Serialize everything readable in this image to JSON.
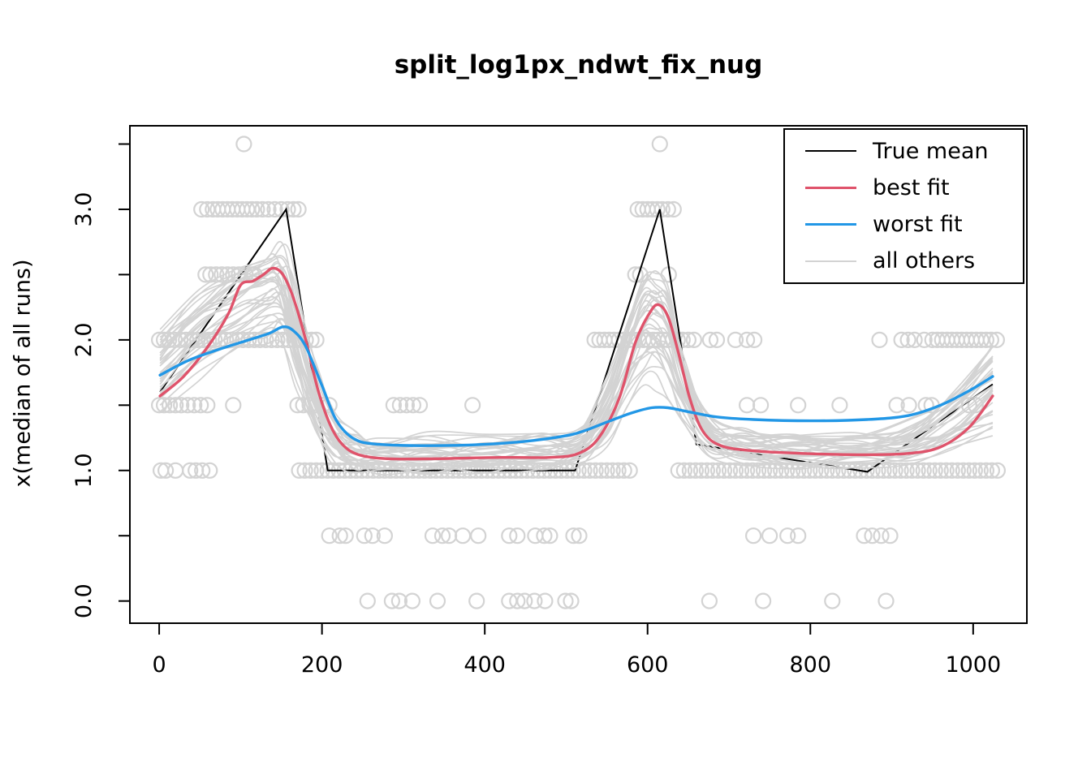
{
  "chart_data": {
    "type": "line",
    "title": "split_log1px_ndwt_fix_nug",
    "xlabel": "",
    "ylabel": "x(median of all runs)",
    "grid": false,
    "xlim": [
      -36,
      1066
    ],
    "ylim": [
      -0.17,
      3.64
    ],
    "x_ticks": [
      0,
      200,
      400,
      600,
      800,
      1000
    ],
    "y_major_ticks": [
      0,
      1,
      2,
      3
    ],
    "y_major_tick_labels": [
      "0.0",
      "1.0",
      "2.0",
      "3.0"
    ],
    "y_minor_ticks": [
      0.5,
      1.5,
      2.5,
      3.5
    ],
    "legend": {
      "position": "top-right",
      "entries": [
        {
          "label": "True mean",
          "color": "#000000",
          "swatch_height": 2
        },
        {
          "label": "best fit",
          "color": "#DF536B",
          "swatch_height": 3
        },
        {
          "label": "worst fit",
          "color": "#2297E6",
          "swatch_height": 3
        },
        {
          "label": "all others",
          "color": "#D3D3D3",
          "swatch_height": 2
        }
      ]
    },
    "series": [
      {
        "name": "True mean",
        "color": "#000000",
        "width": 2,
        "smooth": false,
        "points": [
          [
            1,
            1.6
          ],
          [
            156,
            3.0
          ],
          [
            207,
            1.0
          ],
          [
            511,
            1.0
          ],
          [
            615,
            3.0
          ],
          [
            660,
            1.2
          ],
          [
            870,
            0.99
          ],
          [
            1024,
            1.66
          ]
        ]
      },
      {
        "name": "best fit",
        "color": "#DF536B",
        "width": 3.4,
        "smooth": true,
        "points": [
          [
            1,
            1.57
          ],
          [
            30,
            1.72
          ],
          [
            60,
            1.95
          ],
          [
            85,
            2.2
          ],
          [
            100,
            2.42
          ],
          [
            115,
            2.45
          ],
          [
            128,
            2.5
          ],
          [
            140,
            2.55
          ],
          [
            152,
            2.5
          ],
          [
            165,
            2.32
          ],
          [
            180,
            2.0
          ],
          [
            195,
            1.62
          ],
          [
            210,
            1.35
          ],
          [
            225,
            1.2
          ],
          [
            245,
            1.12
          ],
          [
            280,
            1.09
          ],
          [
            340,
            1.09
          ],
          [
            420,
            1.1
          ],
          [
            480,
            1.1
          ],
          [
            515,
            1.13
          ],
          [
            540,
            1.25
          ],
          [
            565,
            1.55
          ],
          [
            585,
            1.98
          ],
          [
            602,
            2.2
          ],
          [
            613,
            2.27
          ],
          [
            625,
            2.18
          ],
          [
            638,
            1.9
          ],
          [
            652,
            1.55
          ],
          [
            668,
            1.3
          ],
          [
            690,
            1.19
          ],
          [
            730,
            1.15
          ],
          [
            790,
            1.13
          ],
          [
            860,
            1.12
          ],
          [
            920,
            1.13
          ],
          [
            960,
            1.18
          ],
          [
            995,
            1.33
          ],
          [
            1024,
            1.57
          ]
        ]
      },
      {
        "name": "worst fit",
        "color": "#2297E6",
        "width": 3.4,
        "smooth": true,
        "points": [
          [
            1,
            1.73
          ],
          [
            35,
            1.84
          ],
          [
            70,
            1.92
          ],
          [
            105,
            1.99
          ],
          [
            135,
            2.05
          ],
          [
            152,
            2.1
          ],
          [
            165,
            2.07
          ],
          [
            180,
            1.95
          ],
          [
            200,
            1.65
          ],
          [
            218,
            1.38
          ],
          [
            240,
            1.24
          ],
          [
            270,
            1.2
          ],
          [
            330,
            1.19
          ],
          [
            400,
            1.2
          ],
          [
            460,
            1.23
          ],
          [
            510,
            1.28
          ],
          [
            550,
            1.37
          ],
          [
            580,
            1.44
          ],
          [
            605,
            1.48
          ],
          [
            625,
            1.48
          ],
          [
            650,
            1.45
          ],
          [
            685,
            1.41
          ],
          [
            730,
            1.39
          ],
          [
            800,
            1.38
          ],
          [
            870,
            1.39
          ],
          [
            920,
            1.42
          ],
          [
            960,
            1.5
          ],
          [
            995,
            1.61
          ],
          [
            1024,
            1.72
          ]
        ]
      }
    ],
    "others": {
      "name": "all others",
      "color": "#D3D3D3",
      "width": 1.7,
      "x_knots": [
        1,
        50,
        95,
        130,
        152,
        172,
        192,
        212,
        235,
        270,
        330,
        400,
        470,
        515,
        550,
        575,
        595,
        610,
        625,
        645,
        675,
        720,
        780,
        850,
        920,
        975,
        1024
      ],
      "curves": [
        [
          1.95,
          2.6,
          1.2,
          2.48,
          1.24,
          1.9
        ],
        [
          1.8,
          2.42,
          1.12,
          2.25,
          1.18,
          1.7
        ],
        [
          2.0,
          2.55,
          1.18,
          2.38,
          1.22,
          1.85
        ],
        [
          1.7,
          2.28,
          1.08,
          2.12,
          1.12,
          1.55
        ],
        [
          1.58,
          2.15,
          1.02,
          1.95,
          1.06,
          1.4
        ],
        [
          1.9,
          2.5,
          1.17,
          2.32,
          1.2,
          1.8
        ],
        [
          1.74,
          2.34,
          1.1,
          2.05,
          1.14,
          1.62
        ],
        [
          2.05,
          2.66,
          1.24,
          2.45,
          1.26,
          1.95
        ],
        [
          1.64,
          2.22,
          1.05,
          1.88,
          1.09,
          1.48
        ],
        [
          1.85,
          2.46,
          1.14,
          2.28,
          1.19,
          1.76
        ],
        [
          1.5,
          2.05,
          1.0,
          1.72,
          1.04,
          1.32
        ],
        [
          1.96,
          2.56,
          1.2,
          2.4,
          1.23,
          1.88
        ],
        [
          1.68,
          2.3,
          1.09,
          2.0,
          1.12,
          1.58
        ],
        [
          1.82,
          2.44,
          1.13,
          2.22,
          1.17,
          1.72
        ],
        [
          1.56,
          2.12,
          1.03,
          1.85,
          1.07,
          1.42
        ],
        [
          2.02,
          2.62,
          1.22,
          2.42,
          1.25,
          1.92
        ],
        [
          1.75,
          2.36,
          1.11,
          2.1,
          1.15,
          1.64
        ],
        [
          1.88,
          2.5,
          1.16,
          2.3,
          1.21,
          1.82
        ],
        [
          1.62,
          2.2,
          1.04,
          1.92,
          1.08,
          1.46
        ],
        [
          1.86,
          2.46,
          1.15,
          2.26,
          1.19,
          1.78
        ],
        [
          1.45,
          2.0,
          1.0,
          1.65,
          1.02,
          1.26
        ],
        [
          2.08,
          2.67,
          1.26,
          2.5,
          1.27,
          1.96
        ],
        [
          1.7,
          2.26,
          1.08,
          2.02,
          1.12,
          1.56
        ],
        [
          1.8,
          2.4,
          1.12,
          2.18,
          1.16,
          1.7
        ],
        [
          1.6,
          2.16,
          1.03,
          1.9,
          1.08,
          1.44
        ],
        [
          1.94,
          2.54,
          1.19,
          2.36,
          1.22,
          1.86
        ],
        [
          1.72,
          2.32,
          1.1,
          2.08,
          1.13,
          1.6
        ],
        [
          1.9,
          2.52,
          1.17,
          2.34,
          1.2,
          1.84
        ],
        [
          1.66,
          2.24,
          1.06,
          1.96,
          1.1,
          1.5
        ],
        [
          1.84,
          2.44,
          1.14,
          2.24,
          1.18,
          1.74
        ],
        [
          1.55,
          2.1,
          1.01,
          1.8,
          1.05,
          1.36
        ],
        [
          1.98,
          2.58,
          1.21,
          2.44,
          1.24,
          1.9
        ]
      ]
    },
    "scatter": {
      "color": "#D3D3D3",
      "radius_px": 9,
      "rows": [
        {
          "y": 3.5,
          "x": [
            104,
            615
          ]
        },
        {
          "y": 3.0,
          "x": [
            52,
            59,
            66,
            72,
            78,
            84,
            90,
            96,
            102,
            108,
            114,
            120,
            127,
            134,
            142,
            150,
            158,
            165,
            171,
            588,
            594,
            600,
            606,
            612,
            618,
            625,
            632
          ]
        },
        {
          "y": 2.5,
          "x": [
            57,
            63,
            70,
            77,
            84,
            91,
            98,
            106,
            114,
            117,
            585,
            591,
            626
          ]
        },
        {
          "y": 2.0,
          "x": [
            0,
            6,
            12,
            19,
            26,
            33,
            40,
            47,
            54,
            61,
            68,
            75,
            82,
            89,
            96,
            103,
            110,
            117,
            124,
            131,
            138,
            145,
            152,
            159,
            166,
            173,
            180,
            187,
            193,
            535,
            541,
            547,
            553,
            559,
            565,
            571,
            577,
            583,
            589,
            595,
            601,
            607,
            613,
            619,
            625,
            631,
            637,
            643,
            650,
            657,
            677,
            685,
            708,
            722,
            731,
            885,
            912,
            920,
            928,
            940,
            950,
            956,
            962,
            968,
            974,
            980,
            986,
            992,
            998,
            1004,
            1010,
            1016,
            1022,
            1029
          ]
        },
        {
          "y": 1.5,
          "x": [
            0,
            6,
            13,
            20,
            27,
            35,
            43,
            51,
            59,
            91,
            170,
            177,
            185,
            193,
            201,
            209,
            288,
            296,
            304,
            312,
            320,
            385,
            722,
            739,
            785,
            836,
            906,
            921,
            942,
            949,
            995,
            1003
          ]
        },
        {
          "y": 1.0,
          "x": [
            2,
            8,
            20,
            38,
            45,
            53,
            62,
            172,
            179,
            186,
            193,
            200,
            207,
            214,
            221,
            228,
            235,
            242,
            249,
            256,
            263,
            270,
            277,
            284,
            291,
            298,
            305,
            312,
            319,
            326,
            333,
            340,
            347,
            354,
            361,
            368,
            375,
            382,
            389,
            396,
            403,
            410,
            417,
            424,
            431,
            438,
            445,
            452,
            459,
            466,
            473,
            480,
            487,
            494,
            501,
            508,
            515,
            522,
            529,
            536,
            543,
            550,
            557,
            564,
            571,
            578,
            638,
            645,
            652,
            659,
            666,
            673,
            680,
            687,
            694,
            701,
            708,
            715,
            722,
            729,
            736,
            743,
            750,
            757,
            764,
            771,
            778,
            785,
            792,
            799,
            806,
            813,
            820,
            827,
            834,
            841,
            848,
            855,
            862,
            869,
            876,
            883,
            890,
            897,
            904,
            911,
            918,
            925,
            932,
            939,
            946,
            953,
            960,
            967,
            974,
            981,
            988,
            995,
            1002,
            1009,
            1016,
            1023,
            1030
          ]
        },
        {
          "y": 0.5,
          "x": [
            209,
            222,
            229,
            252,
            262,
            277,
            336,
            348,
            356,
            373,
            392,
            430,
            440,
            462,
            473,
            480,
            509,
            516,
            730,
            750,
            772,
            785,
            866,
            876,
            887,
            898
          ]
        },
        {
          "y": 0.0,
          "x": [
            256,
            286,
            295,
            311,
            342,
            390,
            430,
            440,
            449,
            461,
            474,
            499,
            506,
            676,
            742,
            827,
            893
          ]
        }
      ]
    }
  }
}
